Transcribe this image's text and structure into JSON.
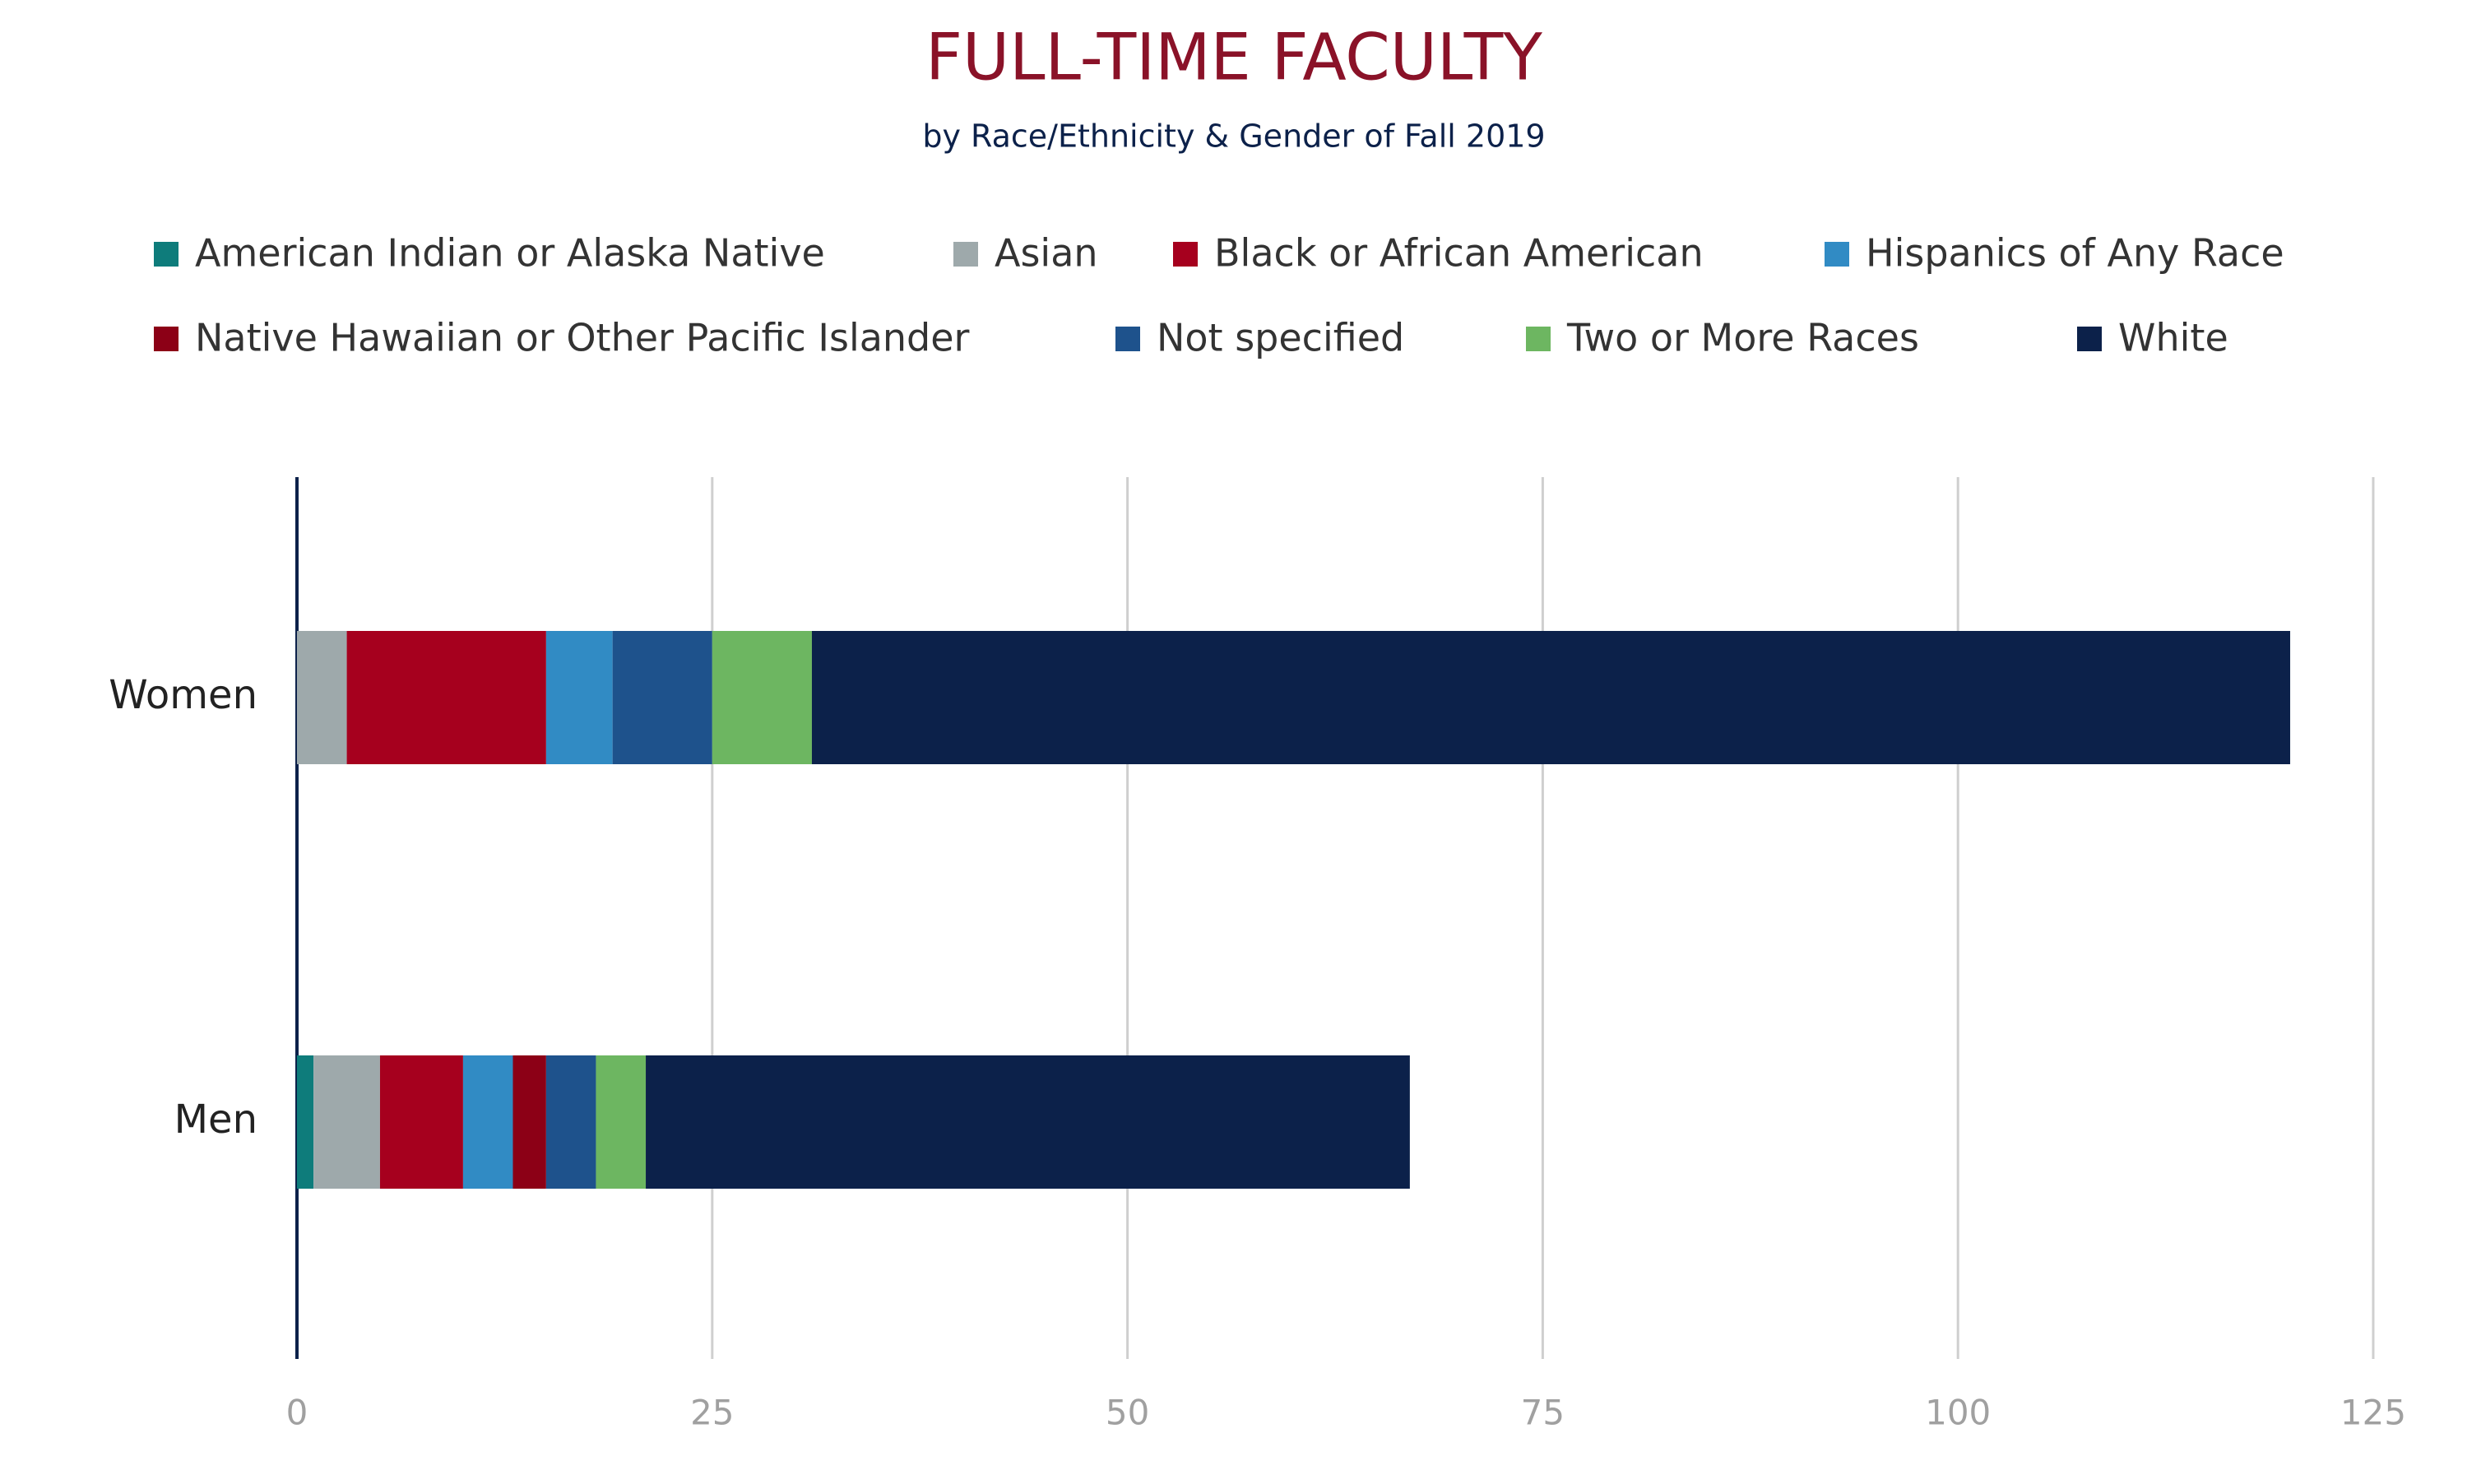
{
  "chart_data": {
    "type": "stacked_bar_horizontal",
    "title": "FULL-TIME FACULTY",
    "subtitle": "by Race/Ethnicity & Gender of Fall 2019",
    "categories": [
      "Women",
      "Men"
    ],
    "series": [
      {
        "name": "American Indian or Alaska Native",
        "color": "#0e7c7b",
        "values": [
          0,
          1
        ]
      },
      {
        "name": "Asian",
        "color": "#9ea9ab",
        "values": [
          3,
          4
        ]
      },
      {
        "name": "Black or African American",
        "color": "#a6001e",
        "values": [
          12,
          5
        ]
      },
      {
        "name": "Hispanics of Any Race",
        "color": "#318bc4",
        "values": [
          4,
          3
        ]
      },
      {
        "name": "Native Hawaiian or Other Pacific Islander",
        "color": "#8c0016",
        "values": [
          0,
          2
        ]
      },
      {
        "name": "Not specified",
        "color": "#1e528c",
        "values": [
          6,
          3
        ]
      },
      {
        "name": "Two or More Races",
        "color": "#6db661",
        "values": [
          6,
          3
        ]
      },
      {
        "name": "White",
        "color": "#0c214a",
        "values": [
          89,
          46
        ]
      }
    ],
    "xlim": [
      0,
      125
    ],
    "xticks": [
      0,
      25,
      50,
      75,
      100,
      125
    ],
    "grid": true,
    "legend": "top"
  }
}
